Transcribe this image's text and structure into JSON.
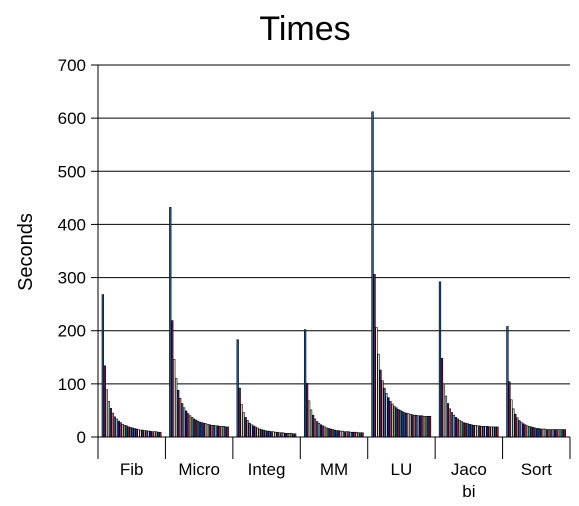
{
  "chart_data": {
    "type": "bar",
    "title": "Times",
    "xlabel": "",
    "ylabel": "Seconds",
    "ylim": [
      0,
      700
    ],
    "yticks": [
      0,
      100,
      200,
      300,
      400,
      500,
      600,
      700
    ],
    "grid": true,
    "legend": "none",
    "categories": [
      "Fib",
      "Micro",
      "Integ",
      "MM",
      "LU",
      "Jaco\nbi",
      "Sort"
    ],
    "bar_colors": [
      "#1f5fa8",
      "#7a1a4a",
      "#f5f0d0",
      "#bfe3ea",
      "#5a1a5a",
      "#f08080",
      "#2f6fb0",
      "#c6c6f0",
      "#1a1a70",
      "#d020b0",
      "#d8d840",
      "#30c8d0",
      "#7a1a8a",
      "#8a2a2a",
      "#2a8a8a",
      "#3030d0"
    ],
    "groups": [
      {
        "name": "Fib",
        "values": [
          268,
          134,
          89,
          67,
          54,
          45,
          38,
          34,
          30,
          27,
          24,
          22,
          21,
          19,
          18,
          17,
          16,
          15,
          14,
          13,
          13,
          12,
          12,
          11,
          11,
          10,
          10,
          10,
          9,
          9
        ]
      },
      {
        "name": "Micro",
        "values": [
          432,
          219,
          146,
          110,
          88,
          73,
          63,
          55,
          49,
          44,
          40,
          37,
          34,
          32,
          30,
          28,
          27,
          26,
          25,
          24,
          23,
          22,
          22,
          21,
          21,
          20,
          20,
          20,
          19,
          19
        ]
      },
      {
        "name": "Integ",
        "values": [
          183,
          92,
          61,
          46,
          37,
          31,
          26,
          23,
          21,
          19,
          17,
          15,
          14,
          13,
          12,
          11,
          11,
          10,
          10,
          9,
          9,
          8,
          8,
          8,
          7,
          7,
          7,
          7,
          6,
          6
        ]
      },
      {
        "name": "MM",
        "values": [
          202,
          101,
          68,
          51,
          41,
          34,
          29,
          26,
          23,
          21,
          19,
          17,
          16,
          15,
          14,
          13,
          12,
          12,
          11,
          11,
          10,
          10,
          10,
          9,
          9,
          9,
          9,
          8,
          8,
          8
        ]
      },
      {
        "name": "LU",
        "values": [
          612,
          306,
          206,
          156,
          126,
          106,
          92,
          82,
          74,
          67,
          62,
          58,
          55,
          52,
          50,
          48,
          46,
          45,
          44,
          43,
          42,
          41,
          41,
          40,
          40,
          40,
          39,
          39,
          39,
          39
        ]
      },
      {
        "name": "Jaco\nbi",
        "values": [
          292,
          148,
          100,
          77,
          63,
          53,
          46,
          41,
          37,
          34,
          31,
          29,
          27,
          26,
          25,
          24,
          23,
          22,
          22,
          21,
          21,
          20,
          20,
          20,
          20,
          19,
          19,
          19,
          19,
          19
        ]
      },
      {
        "name": "Sort",
        "values": [
          208,
          104,
          70,
          53,
          43,
          36,
          31,
          28,
          25,
          23,
          21,
          20,
          19,
          18,
          17,
          16,
          16,
          15,
          15,
          15,
          14,
          14,
          14,
          14,
          14,
          14,
          14,
          14,
          14,
          14
        ]
      }
    ]
  }
}
